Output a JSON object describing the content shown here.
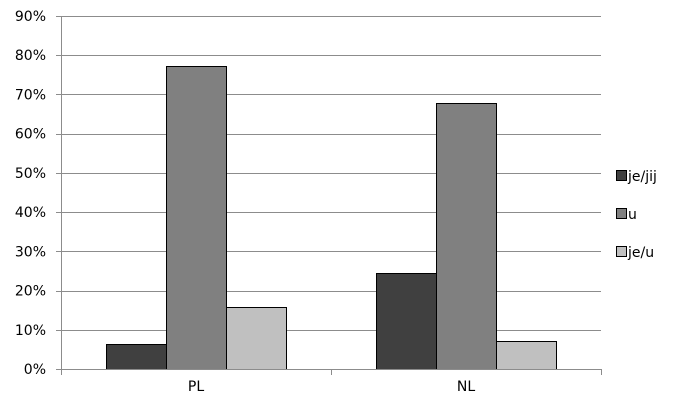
{
  "chart_data": {
    "type": "bar",
    "categories": [
      "PL",
      "NL"
    ],
    "series": [
      {
        "name": "je/jij",
        "values": [
          6.5,
          24.5
        ],
        "color": "#404040"
      },
      {
        "name": "u",
        "values": [
          77.3,
          67.8
        ],
        "color": "#808080"
      },
      {
        "name": "je/u",
        "values": [
          15.8,
          7.2
        ],
        "color": "#c0c0c0"
      }
    ],
    "ylim": [
      0,
      90
    ],
    "yticks": [
      0,
      10,
      20,
      30,
      40,
      50,
      60,
      70,
      80,
      90
    ],
    "y_tick_format": "percent",
    "grid": true,
    "legend_position": "right",
    "title": "",
    "xlabel": "",
    "ylabel": ""
  }
}
